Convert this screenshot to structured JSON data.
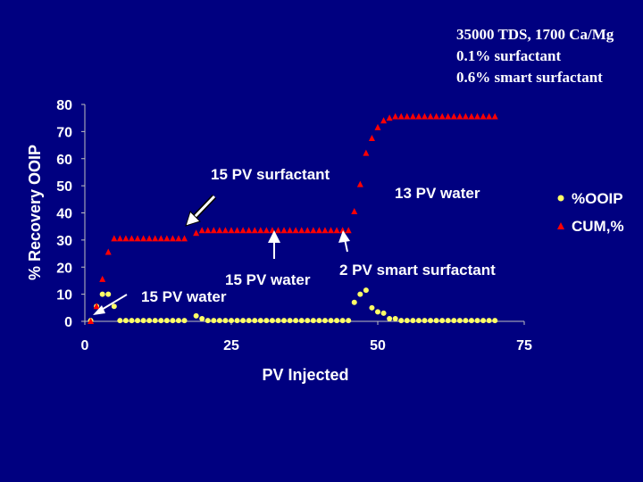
{
  "conditions": [
    "35000 TDS, 1700 Ca/Mg",
    "0.1% surfactant",
    "0.6% smart surfactant"
  ],
  "chart_data": {
    "type": "scatter",
    "xlabel": "PV Injected",
    "ylabel": "% Recovery OOIP",
    "xlim": [
      0,
      75
    ],
    "ylim": [
      0,
      80
    ],
    "x_ticks": [
      "0",
      "25",
      "50",
      "75"
    ],
    "y_ticks": [
      "0",
      "10",
      "20",
      "30",
      "40",
      "50",
      "60",
      "70",
      "80"
    ],
    "grid": false,
    "legend_position": "right",
    "series": [
      {
        "name": "%OOIP",
        "marker": "circle",
        "color": "#ffff66",
        "points": [
          [
            1,
            0.3
          ],
          [
            2,
            5.5
          ],
          [
            3,
            10
          ],
          [
            4,
            10
          ],
          [
            5,
            5.5
          ],
          [
            6,
            0.3
          ],
          [
            7,
            0.3
          ],
          [
            8,
            0.3
          ],
          [
            9,
            0.3
          ],
          [
            10,
            0.3
          ],
          [
            11,
            0.3
          ],
          [
            12,
            0.3
          ],
          [
            13,
            0.3
          ],
          [
            14,
            0.3
          ],
          [
            15,
            0.3
          ],
          [
            16,
            0.3
          ],
          [
            17,
            0.3
          ],
          [
            19,
            2
          ],
          [
            20,
            1
          ],
          [
            21,
            0.3
          ],
          [
            22,
            0.3
          ],
          [
            23,
            0.3
          ],
          [
            24,
            0.3
          ],
          [
            25,
            0.3
          ],
          [
            26,
            0.3
          ],
          [
            27,
            0.3
          ],
          [
            28,
            0.3
          ],
          [
            29,
            0.3
          ],
          [
            30,
            0.3
          ],
          [
            31,
            0.3
          ],
          [
            32,
            0.3
          ],
          [
            33,
            0.3
          ],
          [
            34,
            0.3
          ],
          [
            35,
            0.3
          ],
          [
            36,
            0.3
          ],
          [
            37,
            0.3
          ],
          [
            38,
            0.3
          ],
          [
            39,
            0.3
          ],
          [
            40,
            0.3
          ],
          [
            41,
            0.3
          ],
          [
            42,
            0.3
          ],
          [
            43,
            0.3
          ],
          [
            44,
            0.3
          ],
          [
            45,
            0.3
          ],
          [
            46,
            7
          ],
          [
            47,
            10
          ],
          [
            48,
            11.5
          ],
          [
            49,
            5
          ],
          [
            50,
            3.5
          ],
          [
            51,
            3
          ],
          [
            52,
            1
          ],
          [
            53,
            1
          ],
          [
            54,
            0.3
          ],
          [
            55,
            0.3
          ],
          [
            56,
            0.3
          ],
          [
            57,
            0.3
          ],
          [
            58,
            0.3
          ],
          [
            59,
            0.3
          ],
          [
            60,
            0.3
          ],
          [
            61,
            0.3
          ],
          [
            62,
            0.3
          ],
          [
            63,
            0.3
          ],
          [
            64,
            0.3
          ],
          [
            65,
            0.3
          ],
          [
            66,
            0.3
          ],
          [
            67,
            0.3
          ],
          [
            68,
            0.3
          ],
          [
            69,
            0.3
          ],
          [
            70,
            0.3
          ]
        ]
      },
      {
        "name": "CUM,%",
        "marker": "triangle",
        "color": "#ff0000",
        "points": [
          [
            1,
            0
          ],
          [
            2,
            5.5
          ],
          [
            3,
            15.5
          ],
          [
            4,
            25.5
          ],
          [
            5,
            30.5
          ],
          [
            6,
            30.5
          ],
          [
            7,
            30.5
          ],
          [
            8,
            30.5
          ],
          [
            9,
            30.5
          ],
          [
            10,
            30.5
          ],
          [
            11,
            30.5
          ],
          [
            12,
            30.5
          ],
          [
            13,
            30.5
          ],
          [
            14,
            30.5
          ],
          [
            15,
            30.5
          ],
          [
            16,
            30.5
          ],
          [
            17,
            30.5
          ],
          [
            19,
            32.5
          ],
          [
            20,
            33.5
          ],
          [
            21,
            33.5
          ],
          [
            22,
            33.5
          ],
          [
            23,
            33.5
          ],
          [
            24,
            33.5
          ],
          [
            25,
            33.5
          ],
          [
            26,
            33.5
          ],
          [
            27,
            33.5
          ],
          [
            28,
            33.5
          ],
          [
            29,
            33.5
          ],
          [
            30,
            33.5
          ],
          [
            31,
            33.5
          ],
          [
            32,
            33.5
          ],
          [
            33,
            33.5
          ],
          [
            34,
            33.5
          ],
          [
            35,
            33.5
          ],
          [
            36,
            33.5
          ],
          [
            37,
            33.5
          ],
          [
            38,
            33.5
          ],
          [
            39,
            33.5
          ],
          [
            40,
            33.5
          ],
          [
            41,
            33.5
          ],
          [
            42,
            33.5
          ],
          [
            43,
            33.5
          ],
          [
            44,
            33.5
          ],
          [
            45,
            33.5
          ],
          [
            46,
            40.5
          ],
          [
            47,
            50.5
          ],
          [
            48,
            62
          ],
          [
            49,
            67.5
          ],
          [
            50,
            71.5
          ],
          [
            51,
            74
          ],
          [
            52,
            75
          ],
          [
            53,
            75.5
          ],
          [
            54,
            75.5
          ],
          [
            55,
            75.5
          ],
          [
            56,
            75.5
          ],
          [
            57,
            75.5
          ],
          [
            58,
            75.5
          ],
          [
            59,
            75.5
          ],
          [
            60,
            75.5
          ],
          [
            61,
            75.5
          ],
          [
            62,
            75.5
          ],
          [
            63,
            75.5
          ],
          [
            64,
            75.5
          ],
          [
            65,
            75.5
          ],
          [
            66,
            75.5
          ],
          [
            67,
            75.5
          ],
          [
            68,
            75.5
          ],
          [
            69,
            75.5
          ],
          [
            70,
            75.5
          ]
        ]
      }
    ],
    "annotations": [
      {
        "text": "15 PV water",
        "x": 2,
        "y": 2.5
      },
      {
        "text": "15 PV surfactant",
        "x": 18,
        "y": 35
      },
      {
        "text": "15 PV water",
        "x": 32,
        "y": 32
      },
      {
        "text": "2 PV smart surfactant",
        "x": 44,
        "y": 32
      },
      {
        "text": "13 PV water",
        "x": 57,
        "y": 47
      }
    ]
  }
}
